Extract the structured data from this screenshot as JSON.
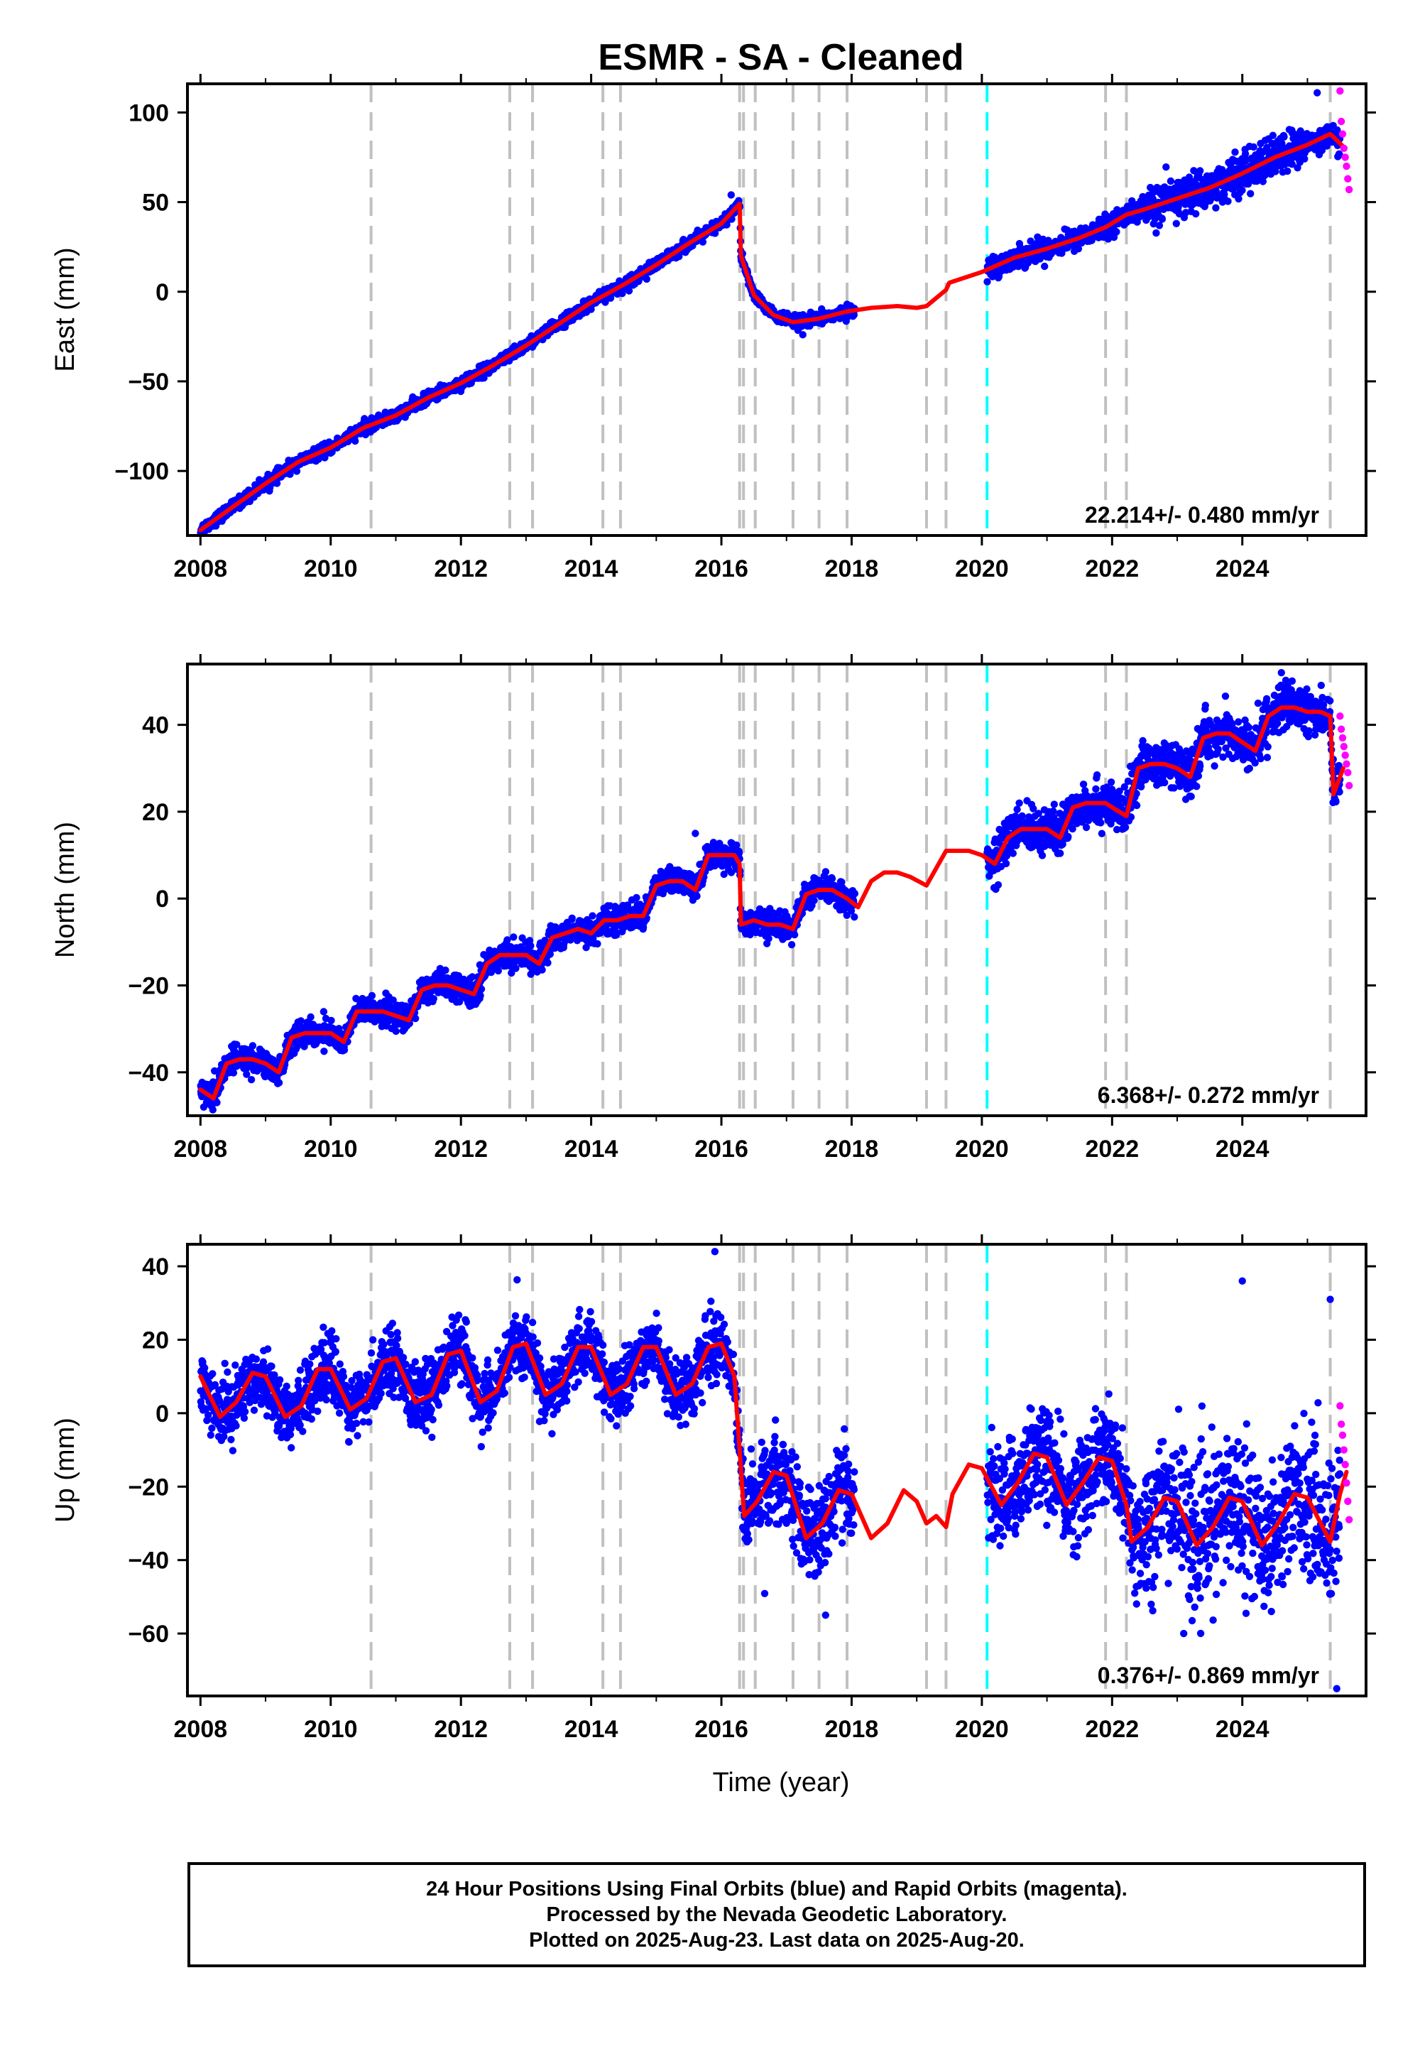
{
  "title": "ESMR  - SA - Cleaned",
  "xlabel": "Time (year)",
  "footer": {
    "line1": "24 Hour Positions Using Final Orbits (blue) and Rapid Orbits (magenta).",
    "line2": "Processed by the Nevada Geodetic Laboratory.",
    "line3": "Plotted on 2025-Aug-23. Last data on 2025-Aug-20."
  },
  "colors": {
    "final_points": "#0000ff",
    "rapid_points": "#ff00ff",
    "model_line": "#ff0000",
    "event_lines": "#c0c0c0",
    "special_event_line": "#00ffff"
  },
  "chart_data": [
    {
      "type": "scatter",
      "component": "East",
      "ylabel": "East (mm)",
      "xlim": [
        2007.8,
        2025.9
      ],
      "ylim": [
        -136,
        116
      ],
      "xticks": [
        2008,
        2010,
        2012,
        2014,
        2016,
        2018,
        2020,
        2022,
        2024
      ],
      "yticks": [
        -100,
        -50,
        0,
        50,
        100
      ],
      "rate_text": "22.214+/- 0.480 mm/yr",
      "event_lines": [
        2010.62,
        2012.75,
        2013.1,
        2014.18,
        2014.45,
        2016.28,
        2016.34,
        2016.52,
        2017.1,
        2017.5,
        2017.93,
        2019.15,
        2019.45,
        2021.9,
        2022.22,
        2025.35
      ],
      "special_event_line": 2020.08,
      "model": {
        "x": [
          2008.0,
          2008.5,
          2009.0,
          2009.5,
          2010.0,
          2010.5,
          2011.0,
          2011.5,
          2012.0,
          2012.5,
          2013.0,
          2013.5,
          2014.0,
          2014.5,
          2015.0,
          2015.5,
          2016.0,
          2016.28,
          2016.3,
          2016.5,
          2016.8,
          2017.1,
          2017.5,
          2017.93,
          2018.3,
          2018.7,
          2019.0,
          2019.15,
          2019.45,
          2019.5,
          2020.0,
          2020.5,
          2021.0,
          2021.5,
          2021.9,
          2022.22,
          2022.5,
          2023.0,
          2023.5,
          2024.0,
          2024.5,
          2025.0,
          2025.35,
          2025.55
        ],
        "y": [
          -133,
          -120,
          -107,
          -95,
          -87,
          -76,
          -69,
          -59,
          -51,
          -41,
          -30,
          -18,
          -6,
          4,
          15,
          27,
          38,
          49,
          20,
          -2,
          -13,
          -17,
          -15,
          -11,
          -9,
          -8,
          -9,
          -8,
          1,
          5,
          11,
          19,
          24,
          30,
          36,
          43,
          46,
          52,
          58,
          66,
          75,
          82,
          88,
          81
        ]
      },
      "rapid": {
        "x": [
          2025.5,
          2025.52,
          2025.54,
          2025.56,
          2025.58,
          2025.6,
          2025.62,
          2025.64
        ],
        "y": [
          112,
          95,
          88,
          80,
          75,
          70,
          63,
          57
        ]
      },
      "outliers": [
        {
          "x": 2025.15,
          "y": 111
        },
        {
          "x": 2016.15,
          "y": 54
        },
        {
          "x": 2017.25,
          "y": -24
        }
      ]
    },
    {
      "type": "scatter",
      "component": "North",
      "ylabel": "North (mm)",
      "xlim": [
        2007.8,
        2025.9
      ],
      "ylim": [
        -50,
        54
      ],
      "xticks": [
        2008,
        2010,
        2012,
        2014,
        2016,
        2018,
        2020,
        2022,
        2024
      ],
      "yticks": [
        -40,
        -20,
        0,
        20,
        40
      ],
      "rate_text": "6.368+/- 0.272 mm/yr",
      "event_lines": [
        2010.62,
        2012.75,
        2013.1,
        2014.18,
        2014.45,
        2016.28,
        2016.34,
        2016.52,
        2017.1,
        2017.5,
        2017.93,
        2019.15,
        2019.45,
        2021.9,
        2022.22,
        2025.35
      ],
      "special_event_line": 2020.08,
      "model": {
        "x": [
          2008.0,
          2008.2,
          2008.4,
          2008.6,
          2008.8,
          2009.0,
          2009.2,
          2009.4,
          2009.6,
          2009.8,
          2010.0,
          2010.2,
          2010.4,
          2010.6,
          2010.8,
          2011.0,
          2011.2,
          2011.4,
          2011.6,
          2011.8,
          2012.0,
          2012.2,
          2012.4,
          2012.6,
          2012.8,
          2013.0,
          2013.2,
          2013.4,
          2013.6,
          2013.8,
          2014.0,
          2014.2,
          2014.4,
          2014.6,
          2014.8,
          2015.0,
          2015.2,
          2015.4,
          2015.6,
          2015.8,
          2016.0,
          2016.2,
          2016.28,
          2016.3,
          2016.5,
          2016.7,
          2016.9,
          2017.1,
          2017.3,
          2017.5,
          2017.7,
          2017.93,
          2018.1,
          2018.3,
          2018.5,
          2018.7,
          2018.9,
          2019.15,
          2019.3,
          2019.45,
          2019.6,
          2019.8,
          2020.0,
          2020.2,
          2020.4,
          2020.6,
          2020.8,
          2021.0,
          2021.2,
          2021.4,
          2021.6,
          2021.9,
          2022.0,
          2022.22,
          2022.4,
          2022.6,
          2022.8,
          2023.0,
          2023.2,
          2023.4,
          2023.6,
          2023.8,
          2024.0,
          2024.2,
          2024.4,
          2024.6,
          2024.8,
          2025.0,
          2025.2,
          2025.35,
          2025.4,
          2025.55
        ],
        "y": [
          -44,
          -46,
          -38,
          -37,
          -37,
          -38,
          -40,
          -32,
          -31,
          -31,
          -31,
          -33,
          -26,
          -26,
          -26,
          -27,
          -28,
          -21,
          -20,
          -20,
          -21,
          -22,
          -15,
          -13,
          -13,
          -13,
          -15,
          -9,
          -8,
          -7,
          -8,
          -5,
          -5,
          -4,
          -4,
          3,
          4,
          4,
          2,
          10,
          10,
          10,
          8,
          -6,
          -5,
          -6,
          -6,
          -7,
          1,
          2,
          2,
          0,
          -2,
          4,
          6,
          6,
          5,
          3,
          7,
          11,
          11,
          11,
          10,
          8,
          14,
          16,
          16,
          16,
          14,
          21,
          22,
          22,
          21,
          19,
          30,
          31,
          31,
          30,
          28,
          37,
          38,
          38,
          36,
          34,
          42,
          44,
          44,
          43,
          43,
          42,
          24,
          30
        ]
      },
      "rapid": {
        "x": [
          2025.5,
          2025.52,
          2025.54,
          2025.56,
          2025.58,
          2025.6,
          2025.62,
          2025.64
        ],
        "y": [
          42,
          39,
          37,
          35,
          33,
          31,
          29,
          26
        ]
      },
      "outliers": [
        {
          "x": 2024.6,
          "y": 52
        },
        {
          "x": 2015.6,
          "y": 15
        },
        {
          "x": 2008.05,
          "y": -48
        }
      ]
    },
    {
      "type": "scatter",
      "component": "Up",
      "ylabel": "Up (mm)",
      "xlim": [
        2007.8,
        2025.9
      ],
      "ylim": [
        -77,
        46
      ],
      "xticks": [
        2008,
        2010,
        2012,
        2014,
        2016,
        2018,
        2020,
        2022,
        2024
      ],
      "yticks": [
        -60,
        -40,
        -20,
        0,
        20,
        40
      ],
      "rate_text": "0.376+/- 0.869 mm/yr",
      "event_lines": [
        2010.62,
        2012.75,
        2013.1,
        2014.18,
        2014.45,
        2016.28,
        2016.34,
        2016.52,
        2017.1,
        2017.5,
        2017.93,
        2019.15,
        2019.45,
        2021.9,
        2022.22,
        2025.35
      ],
      "special_event_line": 2020.08,
      "model": {
        "x": [
          2008.0,
          2008.3,
          2008.55,
          2008.8,
          2009.0,
          2009.3,
          2009.55,
          2009.8,
          2010.0,
          2010.3,
          2010.55,
          2010.8,
          2011.0,
          2011.3,
          2011.55,
          2011.8,
          2012.0,
          2012.3,
          2012.55,
          2012.8,
          2013.0,
          2013.3,
          2013.55,
          2013.8,
          2014.0,
          2014.3,
          2014.55,
          2014.8,
          2015.0,
          2015.3,
          2015.55,
          2015.8,
          2016.0,
          2016.2,
          2016.28,
          2016.35,
          2016.55,
          2016.8,
          2017.0,
          2017.3,
          2017.55,
          2017.8,
          2018.0,
          2018.3,
          2018.55,
          2018.8,
          2019.0,
          2019.15,
          2019.3,
          2019.45,
          2019.55,
          2019.8,
          2020.0,
          2020.3,
          2020.55,
          2020.8,
          2021.0,
          2021.3,
          2021.55,
          2021.8,
          2022.0,
          2022.22,
          2022.3,
          2022.55,
          2022.8,
          2023.0,
          2023.3,
          2023.55,
          2023.8,
          2024.0,
          2024.3,
          2024.55,
          2024.8,
          2025.0,
          2025.35,
          2025.5,
          2025.6
        ],
        "y": [
          10,
          -1,
          3,
          11,
          10,
          -1,
          2,
          12,
          12,
          1,
          4,
          14,
          15,
          3,
          5,
          16,
          17,
          3,
          6,
          18,
          19,
          5,
          8,
          18,
          18,
          5,
          8,
          18,
          18,
          5,
          8,
          18,
          19,
          10,
          -10,
          -28,
          -24,
          -16,
          -17,
          -34,
          -30,
          -21,
          -22,
          -34,
          -30,
          -21,
          -24,
          -30,
          -28,
          -31,
          -22,
          -14,
          -15,
          -25,
          -19,
          -11,
          -12,
          -25,
          -19,
          -12,
          -13,
          -25,
          -35,
          -31,
          -23,
          -24,
          -36,
          -31,
          -23,
          -24,
          -36,
          -30,
          -22,
          -23,
          -35,
          -22,
          -16
        ]
      },
      "rapid": {
        "x": [
          2025.5,
          2025.52,
          2025.54,
          2025.56,
          2025.58,
          2025.6,
          2025.62,
          2025.64
        ],
        "y": [
          2,
          -3,
          -6,
          -10,
          -14,
          -19,
          -24,
          -29
        ]
      },
      "outliers": [
        {
          "x": 2015.9,
          "y": 44
        },
        {
          "x": 2024.0,
          "y": 36
        },
        {
          "x": 2025.35,
          "y": 31
        },
        {
          "x": 2025.45,
          "y": -75
        },
        {
          "x": 2017.6,
          "y": -55
        },
        {
          "x": 2023.1,
          "y": -60
        }
      ]
    }
  ]
}
